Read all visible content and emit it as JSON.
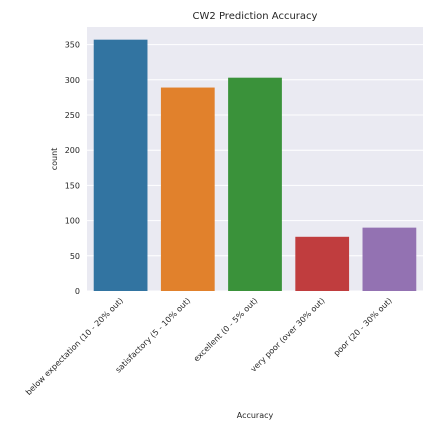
{
  "chart_data": {
    "type": "bar",
    "title": "CW2 Prediction Accuracy",
    "xlabel": "Accuracy",
    "ylabel": "count",
    "categories": [
      "below expectation (10 - 20% out)",
      "satisfactory (5 - 10% out)",
      "excellent (0 - 5% out)",
      "very poor (over 30% out)",
      "poor (20 - 30% out)"
    ],
    "values": [
      357,
      289,
      303,
      77,
      90
    ],
    "colors": [
      "#3274a1",
      "#e1812c",
      "#3a923a",
      "#c03d3e",
      "#9372b2"
    ],
    "ylim": [
      0,
      375
    ],
    "yticks": [
      0,
      50,
      100,
      150,
      200,
      250,
      300,
      350
    ],
    "grid": true,
    "background": "#eaeaf2"
  }
}
